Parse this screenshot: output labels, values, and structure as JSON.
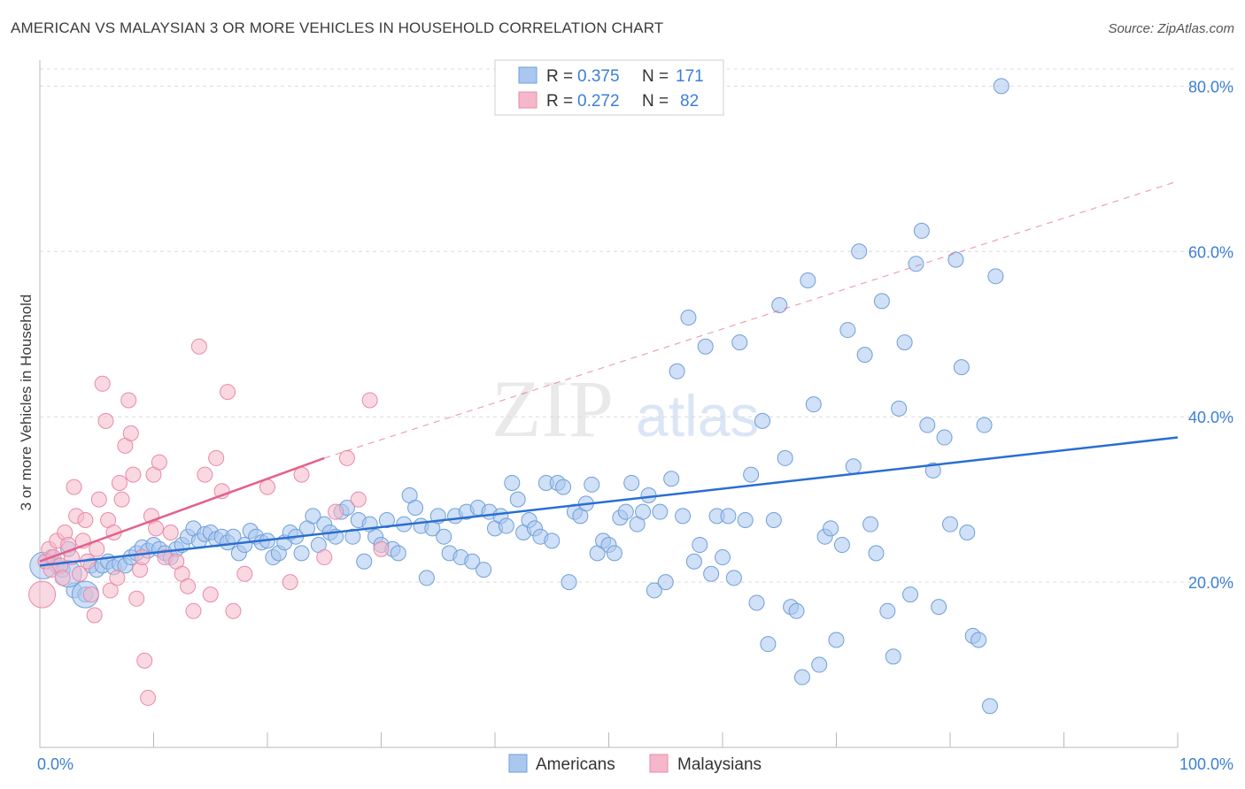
{
  "header": {
    "title": "AMERICAN VS MALAYSIAN 3 OR MORE VEHICLES IN HOUSEHOLD CORRELATION CHART",
    "source": "Source: ZipAtlas.com"
  },
  "legend_box": {
    "rows": [
      {
        "r_label": "R =",
        "r_value": "0.375",
        "n_label": "N =",
        "n_value": "171"
      },
      {
        "r_label": "R =",
        "r_value": "0.272",
        "n_label": "N =",
        "n_value": "82"
      }
    ]
  },
  "bottom_legend": {
    "americans": "Americans",
    "malaysians": "Malaysians"
  },
  "watermark": {
    "zip": "ZIP",
    "atlas": "atlas"
  },
  "colors": {
    "american_fill": "#a9c7ef",
    "american_stroke": "#6f9fd8",
    "american_line": "#2a6fd0",
    "malaysian_fill": "#f5b8cb",
    "malaysian_stroke": "#e98aa8",
    "malaysian_line": "#e5608b",
    "axis_text": "#3b7fd6",
    "grid": "#dcdcdc"
  },
  "chart_data": {
    "type": "scatter",
    "title": "AMERICAN VS MALAYSIAN 3 OR MORE VEHICLES IN HOUSEHOLD CORRELATION CHART",
    "xlabel": "",
    "ylabel": "3 or more Vehicles in Household",
    "xlim": [
      0,
      100
    ],
    "ylim": [
      0,
      84
    ],
    "x_tick_labels": [
      "0.0%",
      "100.0%"
    ],
    "y_ticks": [
      20,
      40,
      60,
      80
    ],
    "y_tick_labels": [
      "20.0%",
      "40.0%",
      "60.0%",
      "80.0%"
    ],
    "grid": "horizontal dashed",
    "legend_position": "top-center",
    "series": [
      {
        "name": "Americans",
        "r": 0.375,
        "n": 171,
        "trend": {
          "x": [
            0,
            100
          ],
          "y": [
            22.0,
            37.5
          ]
        },
        "points": [
          [
            0.5,
            22.5
          ],
          [
            1,
            23
          ],
          [
            1.5,
            22
          ],
          [
            2,
            21.5
          ],
          [
            2.5,
            24
          ],
          [
            3,
            19
          ],
          [
            4,
            18.5
          ],
          [
            4.5,
            22
          ],
          [
            5,
            21.5
          ],
          [
            5.5,
            22
          ],
          [
            6,
            22.5
          ],
          [
            6.5,
            21.8
          ],
          [
            7,
            22.2
          ],
          [
            7.5,
            22
          ],
          [
            8,
            23
          ],
          [
            8.5,
            23.5
          ],
          [
            9,
            24.2
          ],
          [
            9.5,
            23.8
          ],
          [
            10,
            24.5
          ],
          [
            10.5,
            24
          ],
          [
            11,
            23.5
          ],
          [
            11.5,
            23
          ],
          [
            12,
            24
          ],
          [
            12.5,
            24.5
          ],
          [
            13,
            25.5
          ],
          [
            13.5,
            26.5
          ],
          [
            14,
            25
          ],
          [
            14.5,
            25.8
          ],
          [
            15,
            26
          ],
          [
            15.5,
            25.2
          ],
          [
            16,
            25.5
          ],
          [
            16.5,
            24.8
          ],
          [
            17,
            25.5
          ],
          [
            17.5,
            23.5
          ],
          [
            18,
            24.5
          ],
          [
            18.5,
            26.2
          ],
          [
            19,
            25.5
          ],
          [
            19.5,
            24.8
          ],
          [
            20,
            25
          ],
          [
            20.5,
            23
          ],
          [
            21,
            23.5
          ],
          [
            21.5,
            24.8
          ],
          [
            22,
            26
          ],
          [
            22.5,
            25.5
          ],
          [
            23,
            23.5
          ],
          [
            23.5,
            26.5
          ],
          [
            24,
            28
          ],
          [
            24.5,
            24.5
          ],
          [
            25,
            27
          ],
          [
            25.5,
            26
          ],
          [
            26,
            25.5
          ],
          [
            26.5,
            28.5
          ],
          [
            27,
            29
          ],
          [
            27.5,
            25.5
          ],
          [
            28,
            27.5
          ],
          [
            28.5,
            22.5
          ],
          [
            29,
            27
          ],
          [
            29.5,
            25.5
          ],
          [
            30,
            24.5
          ],
          [
            30.5,
            27.5
          ],
          [
            31,
            24
          ],
          [
            31.5,
            23.5
          ],
          [
            32,
            27
          ],
          [
            32.5,
            30.5
          ],
          [
            33,
            29
          ],
          [
            33.5,
            26.8
          ],
          [
            34,
            20.5
          ],
          [
            34.5,
            26.5
          ],
          [
            35,
            28
          ],
          [
            35.5,
            25.5
          ],
          [
            36,
            23.5
          ],
          [
            36.5,
            28
          ],
          [
            37,
            23
          ],
          [
            37.5,
            28.5
          ],
          [
            38,
            22.5
          ],
          [
            38.5,
            29
          ],
          [
            39,
            21.5
          ],
          [
            39.5,
            28.5
          ],
          [
            40,
            26.5
          ],
          [
            40.5,
            28
          ],
          [
            41,
            26.8
          ],
          [
            41.5,
            32
          ],
          [
            42,
            30
          ],
          [
            42.5,
            26
          ],
          [
            43,
            27.5
          ],
          [
            43.5,
            26.5
          ],
          [
            44,
            25.5
          ],
          [
            44.5,
            32
          ],
          [
            45,
            25
          ],
          [
            45.5,
            32
          ],
          [
            46,
            31.5
          ],
          [
            46.5,
            20
          ],
          [
            47,
            28.5
          ],
          [
            47.5,
            28
          ],
          [
            48,
            29.5
          ],
          [
            48.5,
            31.8
          ],
          [
            49,
            23.5
          ],
          [
            49.5,
            25
          ],
          [
            50,
            24.5
          ],
          [
            50.5,
            23.5
          ],
          [
            51,
            27.8
          ],
          [
            51.5,
            28.5
          ],
          [
            52,
            32
          ],
          [
            52.5,
            27
          ],
          [
            53,
            28.5
          ],
          [
            53.5,
            30.5
          ],
          [
            54,
            19
          ],
          [
            54.5,
            28.5
          ],
          [
            55,
            20
          ],
          [
            55.5,
            32.5
          ],
          [
            56,
            45.5
          ],
          [
            56.5,
            28
          ],
          [
            57,
            52
          ],
          [
            57.5,
            22.5
          ],
          [
            58,
            24.5
          ],
          [
            58.5,
            48.5
          ],
          [
            59,
            21
          ],
          [
            59.5,
            28
          ],
          [
            60,
            23
          ],
          [
            60.5,
            28
          ],
          [
            61,
            20.5
          ],
          [
            61.5,
            49
          ],
          [
            62,
            27.5
          ],
          [
            62.5,
            33
          ],
          [
            63,
            17.5
          ],
          [
            63.5,
            39.5
          ],
          [
            64,
            12.5
          ],
          [
            64.5,
            27.5
          ],
          [
            65,
            53.5
          ],
          [
            65.5,
            35
          ],
          [
            66,
            17
          ],
          [
            66.5,
            16.5
          ],
          [
            67,
            8.5
          ],
          [
            67.5,
            56.5
          ],
          [
            68,
            41.5
          ],
          [
            68.5,
            10
          ],
          [
            69,
            25.5
          ],
          [
            69.5,
            26.5
          ],
          [
            70,
            13
          ],
          [
            70.5,
            24.5
          ],
          [
            71,
            50.5
          ],
          [
            71.5,
            34
          ],
          [
            72,
            60
          ],
          [
            72.5,
            47.5
          ],
          [
            73,
            27
          ],
          [
            73.5,
            23.5
          ],
          [
            74,
            54
          ],
          [
            74.5,
            16.5
          ],
          [
            75,
            11
          ],
          [
            75.5,
            41
          ],
          [
            76,
            49
          ],
          [
            76.5,
            18.5
          ],
          [
            77,
            58.5
          ],
          [
            77.5,
            62.5
          ],
          [
            78,
            39
          ],
          [
            78.5,
            33.5
          ],
          [
            79,
            17
          ],
          [
            79.5,
            37.5
          ],
          [
            80,
            27
          ],
          [
            80.5,
            59
          ],
          [
            81,
            46
          ],
          [
            81.5,
            26
          ],
          [
            82,
            13.5
          ],
          [
            82.5,
            13
          ],
          [
            83,
            39
          ],
          [
            83.5,
            5
          ],
          [
            84,
            57
          ],
          [
            84.5,
            80
          ]
        ],
        "big_points": [
          [
            0.3,
            22
          ],
          [
            2.5,
            21
          ],
          [
            4,
            18.5
          ]
        ]
      },
      {
        "name": "Malaysians",
        "r": 0.272,
        "n": 82,
        "trend": {
          "x": [
            0,
            25
          ],
          "y": [
            22.5,
            35.0
          ]
        },
        "trend_extension": {
          "x": [
            25,
            100
          ],
          "y": [
            35.0,
            68.5
          ]
        },
        "points": [
          [
            0.5,
            22.5
          ],
          [
            0.8,
            24
          ],
          [
            1,
            21.5
          ],
          [
            1.2,
            23
          ],
          [
            1.5,
            25
          ],
          [
            1.8,
            22
          ],
          [
            2,
            20.5
          ],
          [
            2.2,
            26
          ],
          [
            2.5,
            24.5
          ],
          [
            2.8,
            23
          ],
          [
            3,
            31.5
          ],
          [
            3.2,
            28
          ],
          [
            3.5,
            21
          ],
          [
            3.8,
            25
          ],
          [
            4,
            27.5
          ],
          [
            4.2,
            22.5
          ],
          [
            4.5,
            18.5
          ],
          [
            4.8,
            16
          ],
          [
            5,
            24
          ],
          [
            5.2,
            30
          ],
          [
            5.5,
            44
          ],
          [
            5.8,
            39.5
          ],
          [
            6,
            27.5
          ],
          [
            6.2,
            19
          ],
          [
            6.5,
            26
          ],
          [
            6.8,
            20.5
          ],
          [
            7,
            32
          ],
          [
            7.2,
            30
          ],
          [
            7.5,
            36.5
          ],
          [
            7.8,
            42
          ],
          [
            8,
            38
          ],
          [
            8.2,
            33
          ],
          [
            8.5,
            18
          ],
          [
            8.8,
            21.5
          ],
          [
            9,
            23
          ],
          [
            9.2,
            10.5
          ],
          [
            9.5,
            6
          ],
          [
            9.8,
            28
          ],
          [
            10,
            33
          ],
          [
            10.2,
            26.5
          ],
          [
            10.5,
            34.5
          ],
          [
            11,
            23
          ],
          [
            11.5,
            26
          ],
          [
            12,
            22.5
          ],
          [
            12.5,
            21
          ],
          [
            13,
            19.5
          ],
          [
            13.5,
            16.5
          ],
          [
            14,
            48.5
          ],
          [
            14.5,
            33
          ],
          [
            15,
            18.5
          ],
          [
            15.5,
            35
          ],
          [
            16,
            31
          ],
          [
            16.5,
            43
          ],
          [
            17,
            16.5
          ],
          [
            18,
            21
          ],
          [
            20,
            31.5
          ],
          [
            22,
            20
          ],
          [
            23,
            33
          ],
          [
            25,
            23
          ],
          [
            26,
            28.5
          ],
          [
            27,
            35
          ],
          [
            28,
            30
          ],
          [
            29,
            42
          ],
          [
            30,
            24
          ]
        ],
        "big_points": [
          [
            0.2,
            18.5
          ]
        ]
      }
    ]
  }
}
